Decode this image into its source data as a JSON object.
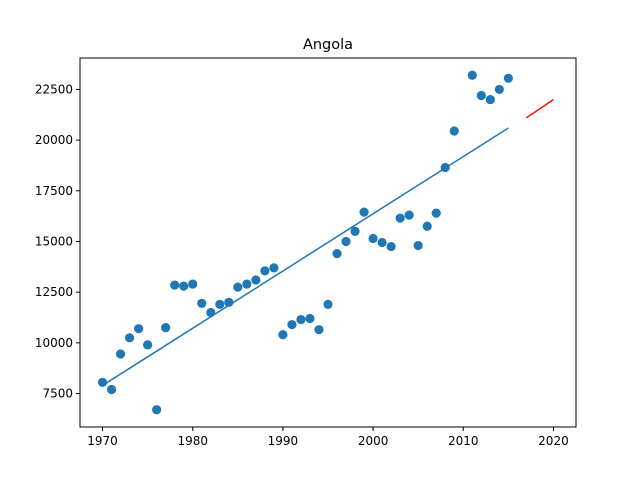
{
  "chart_data": {
    "type": "scatter",
    "title": "Angola",
    "xlabel": "",
    "ylabel": "",
    "xlim": [
      1967.5,
      2022.5
    ],
    "ylim": [
      5850,
      24050
    ],
    "x_ticks": [
      1970,
      1980,
      1990,
      2000,
      2010,
      2020
    ],
    "x_tick_labels": [
      "1970",
      "1980",
      "1990",
      "2000",
      "2010",
      "2020"
    ],
    "y_ticks": [
      7500,
      10000,
      12500,
      15000,
      17500,
      20000,
      22500
    ],
    "y_tick_labels": [
      "7500",
      "10000",
      "12500",
      "15000",
      "17500",
      "20000",
      "22500"
    ],
    "grid": false,
    "series": [
      {
        "kind": "scatter",
        "color": "#1f77b4",
        "x": [
          1970,
          1971,
          1972,
          1973,
          1974,
          1975,
          1976,
          1977,
          1978,
          1979,
          1980,
          1981,
          1982,
          1983,
          1984,
          1985,
          1986,
          1987,
          1988,
          1989,
          1990,
          1991,
          1992,
          1993,
          1994,
          1995,
          1996,
          1997,
          1998,
          1999,
          2000,
          2001,
          2002,
          2003,
          2004,
          2005,
          2006,
          2007,
          2008,
          2009,
          2010,
          2011,
          2012,
          2013,
          2014,
          2015
        ],
        "y": [
          8050,
          7700,
          9450,
          10250,
          10700,
          9900,
          6700,
          10750,
          12850,
          12800,
          12900,
          11950,
          11500,
          11900,
          12000,
          12750,
          12900,
          13100,
          13550,
          13700,
          10400,
          10900,
          11150,
          11200,
          10650,
          11900,
          14400,
          15000,
          15500,
          16450,
          15150,
          14950,
          14750,
          16150,
          16300,
          14800,
          15750,
          16400,
          18650,
          20450,
          null,
          23200,
          22200,
          22000,
          22500,
          23050
        ]
      },
      {
        "kind": "line",
        "color": "#1f77b4",
        "x": [
          1970,
          2015
        ],
        "y": [
          7900,
          20600
        ]
      },
      {
        "kind": "line",
        "color": "#ff0000",
        "x": [
          2017,
          2020
        ],
        "y": [
          21100,
          22000
        ]
      }
    ]
  }
}
